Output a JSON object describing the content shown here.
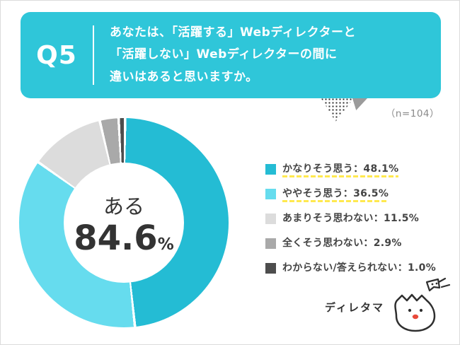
{
  "banner": {
    "q_label": "Q5",
    "question_lines": [
      "あなたは、「活躍する」Webディレクターと",
      "「活躍しない」Webディレクターの間に",
      "違いはあると思いますか。"
    ],
    "sample_size": "（n=104）"
  },
  "donut": {
    "center_label": "ある",
    "center_value": "84.6",
    "center_unit": "%"
  },
  "legend": [
    {
      "label": "かなりそう思う：48.1%",
      "color": "#24bcd4",
      "highlight": true
    },
    {
      "label": "ややそう思う：36.5%",
      "color": "#66dcee",
      "highlight": true
    },
    {
      "label": "あまりそう思わない：11.5%",
      "color": "#dcdcdc",
      "highlight": false
    },
    {
      "label": "全くそう思わない：2.9%",
      "color": "#a9a9a9",
      "highlight": false
    },
    {
      "label": "わからない/答えられない：1.0%",
      "color": "#4d4d4d",
      "highlight": false
    }
  ],
  "chart_data": {
    "type": "pie",
    "donut": true,
    "title": "あなたは、「活躍する」Webディレクターと「活躍しない」Webディレクターの間に違いはあると思いますか。",
    "sample_size": 104,
    "categories": [
      "かなりそう思う",
      "ややそう思う",
      "あまりそう思わない",
      "全くそう思わない",
      "わからない/答えられない"
    ],
    "values": [
      48.1,
      36.5,
      11.5,
      2.9,
      1.0
    ],
    "colors": [
      "#24bcd4",
      "#66dcee",
      "#dcdcdc",
      "#a9a9a9",
      "#4d4d4d"
    ],
    "center_label": "ある",
    "center_value": 84.6,
    "legend_position": "right",
    "accent_color": "#2fc6d9",
    "highlight_underline_color": "#ffe94f"
  },
  "footer": {
    "brand": "ディレタマ"
  }
}
